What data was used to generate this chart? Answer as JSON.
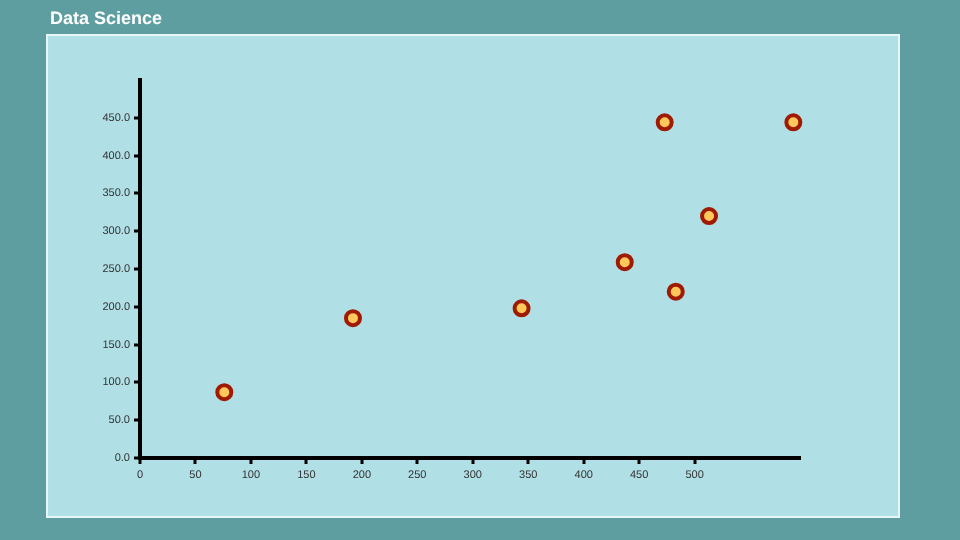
{
  "chart_data": {
    "type": "scatter",
    "title": "Data Science",
    "x": [
      76,
      192,
      344,
      437,
      473,
      483,
      513,
      589
    ],
    "values": [
      87,
      185,
      198,
      259,
      444,
      220,
      320,
      444
    ],
    "color": "#a01a00",
    "marker": "circle",
    "grid": false,
    "legend": false,
    "xlim": [
      0,
      595
    ],
    "xticks": [
      0,
      50,
      100,
      150,
      200,
      250,
      300,
      350,
      400,
      450,
      500
    ],
    "ylim": [
      0,
      500
    ],
    "yticks": [
      {
        "value": 0,
        "label": "0.0"
      },
      {
        "value": 50,
        "label": "50.0"
      },
      {
        "value": 100,
        "label": "100.0"
      },
      {
        "value": 150,
        "label": "150.0"
      },
      {
        "value": 200,
        "label": "200.0"
      },
      {
        "value": 250,
        "label": "250.0"
      },
      {
        "value": 300,
        "label": "300.0"
      },
      {
        "value": 350,
        "label": "350.0"
      },
      {
        "value": 400,
        "label": "400.0"
      },
      {
        "value": 450,
        "label": "450.0"
      }
    ]
  }
}
